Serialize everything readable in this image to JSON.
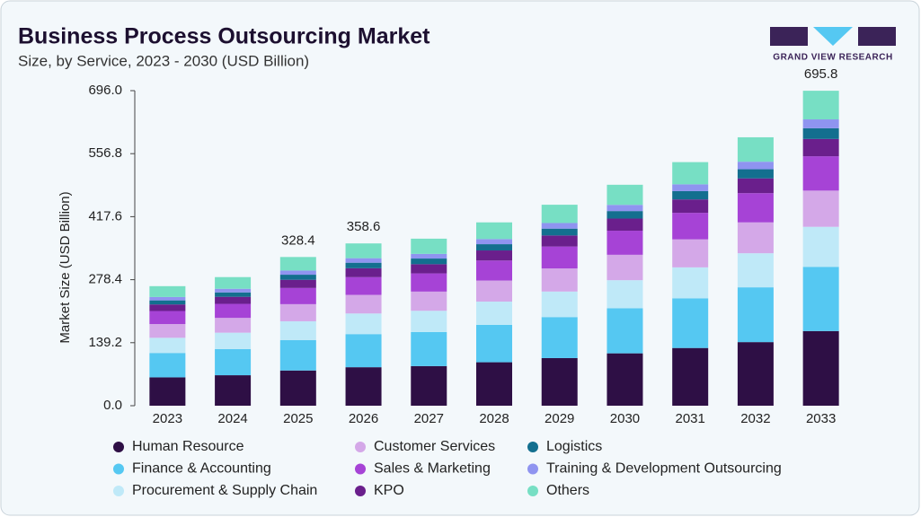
{
  "chart_data": {
    "type": "stacked-bar",
    "title": "Business Process Outsourcing Market",
    "subtitle": "Size, by Service, 2023 - 2030 (USD Billion)",
    "y_label": "Market Size (USD Billion)",
    "categories": [
      "2023",
      "2024",
      "2025",
      "2026",
      "2027",
      "2028",
      "2029",
      "2030",
      "2031",
      "2032",
      "2033"
    ],
    "totals": [
      null,
      null,
      328.4,
      358.6,
      null,
      null,
      null,
      null,
      null,
      null,
      695.8
    ],
    "ylim": [
      0,
      696
    ],
    "yticks": [
      {
        "value": 0,
        "label": "0.0"
      },
      139.2,
      278.4,
      417.6,
      556.8,
      {
        "value": 696,
        "label": "696.0"
      }
    ],
    "series": [
      {
        "name": "Human Resource",
        "color": "#2e0f45",
        "values": [
          62.6,
          67.3,
          77.8,
          85.0,
          87.5,
          96.0,
          105.2,
          115.7,
          127.5,
          140.5,
          164.9
        ]
      },
      {
        "name": "Finance & Accounting",
        "color": "#55c8f2",
        "values": [
          53.9,
          57.9,
          67.0,
          73.2,
          75.3,
          82.6,
          90.6,
          99.6,
          109.8,
          121.0,
          141.9
        ]
      },
      {
        "name": "Procurement & Supply Chain",
        "color": "#bfe9f8",
        "values": [
          33.5,
          36.1,
          41.7,
          45.5,
          46.9,
          51.4,
          56.4,
          62.0,
          68.3,
          75.3,
          88.4
        ]
      },
      {
        "name": "Customer Services",
        "color": "#d4a8e8",
        "values": [
          30.4,
          32.7,
          37.8,
          41.2,
          42.4,
          46.6,
          51.1,
          56.1,
          61.9,
          68.2,
          80.0
        ]
      },
      {
        "name": "Sales & Marketing",
        "color": "#a643d6",
        "values": [
          28.8,
          31.0,
          35.8,
          39.1,
          40.2,
          44.1,
          48.4,
          53.2,
          58.6,
          64.6,
          75.8
        ]
      },
      {
        "name": "KPO",
        "color": "#6a1f8c",
        "values": [
          14.5,
          15.6,
          18.1,
          19.7,
          20.3,
          22.3,
          24.4,
          26.8,
          29.6,
          32.6,
          38.3
        ]
      },
      {
        "name": "Logistics",
        "color": "#136f8f",
        "values": [
          9.0,
          9.7,
          11.2,
          12.2,
          12.5,
          13.8,
          15.1,
          16.6,
          18.3,
          20.2,
          23.7
        ]
      },
      {
        "name": "Training & Development Outsourcing",
        "color": "#8f94f0",
        "values": [
          7.4,
          8.0,
          9.2,
          10.0,
          10.3,
          11.3,
          12.4,
          13.7,
          15.1,
          16.6,
          19.5
        ]
      },
      {
        "name": "Others",
        "color": "#77dfc4",
        "values": [
          24.0,
          25.8,
          29.9,
          32.6,
          33.6,
          36.9,
          40.4,
          44.4,
          49.0,
          54.0,
          63.3
        ]
      }
    ]
  },
  "logo": "GRAND VIEW RESEARCH"
}
